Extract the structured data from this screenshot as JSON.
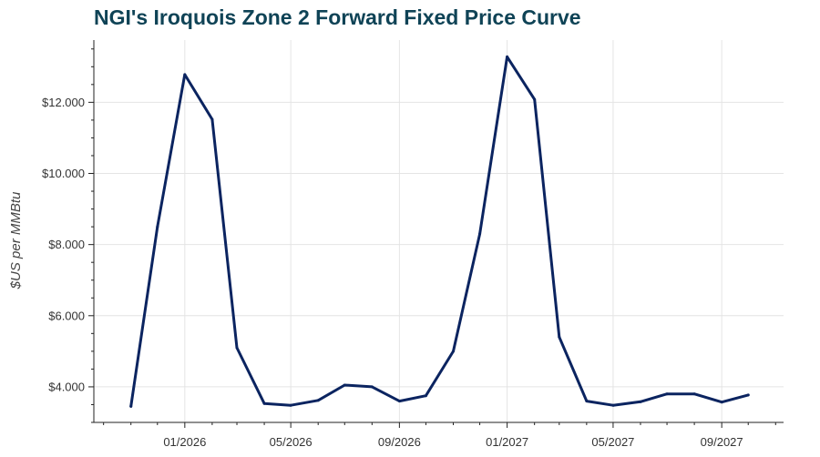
{
  "chart_data": {
    "type": "line",
    "title": "NGI's Iroquois Zone 2 Forward Fixed Price Curve",
    "xlabel": "",
    "ylabel": "$US per MMBtu",
    "x_ticks": [
      "01/2026",
      "05/2026",
      "09/2026",
      "01/2027",
      "05/2027",
      "09/2027"
    ],
    "y_ticks": [
      "$4.000",
      "$6.000",
      "$8.000",
      "$10.000",
      "$12.000"
    ],
    "y_tick_values": [
      4,
      6,
      8,
      10,
      12
    ],
    "ylim": [
      3.0,
      13.75
    ],
    "xlim": [
      "2025-09-20",
      "2027-11-10"
    ],
    "grid": true,
    "legend": "none",
    "colors": {
      "line": "#0b2460",
      "grid": "#e4e4e4",
      "axis": "#222222",
      "title": "#0f4356"
    },
    "series": [
      {
        "x": [
          "2025-11-01",
          "2025-12-01",
          "2026-01-01",
          "2026-02-01",
          "2026-03-01",
          "2026-04-01",
          "2026-05-01",
          "2026-06-01",
          "2026-07-01",
          "2026-08-01",
          "2026-09-01",
          "2026-10-01",
          "2026-11-01",
          "2026-12-01",
          "2027-01-01",
          "2027-02-01",
          "2027-03-01",
          "2027-04-01",
          "2027-05-01",
          "2027-06-01",
          "2027-07-01",
          "2027-08-01",
          "2027-09-01",
          "2027-10-01"
        ],
        "values": [
          3.45,
          8.5,
          12.78,
          11.52,
          5.1,
          3.53,
          3.48,
          3.62,
          4.05,
          4.0,
          3.6,
          3.75,
          5.0,
          8.3,
          13.28,
          12.08,
          5.4,
          3.6,
          3.48,
          3.58,
          3.8,
          3.8,
          3.57,
          3.77
        ]
      }
    ]
  }
}
